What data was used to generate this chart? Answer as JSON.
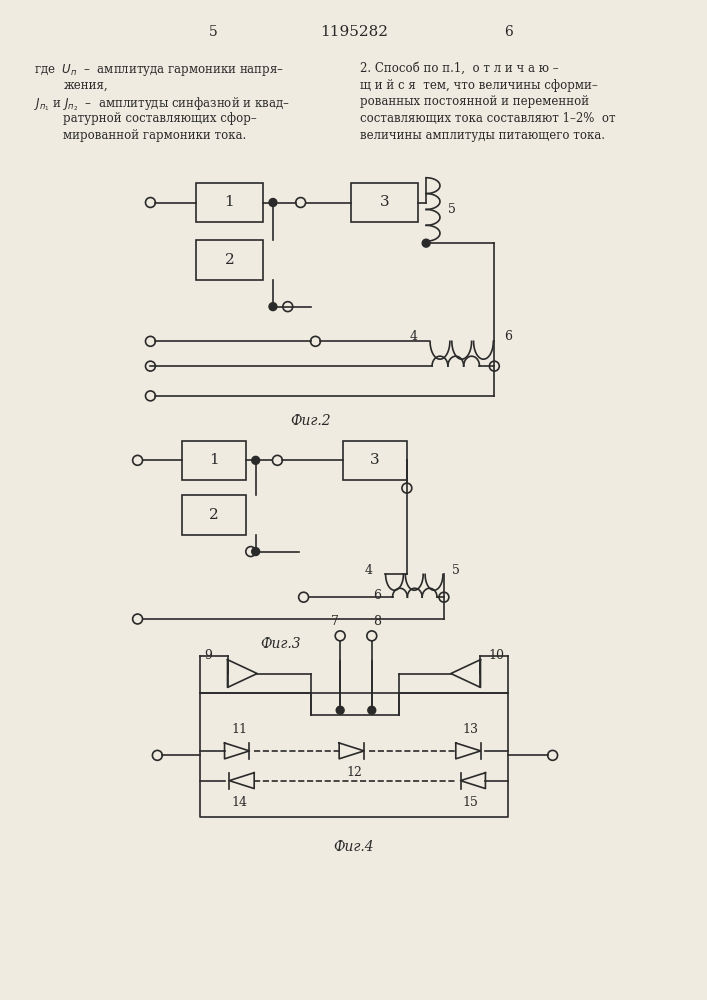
{
  "page_width": 7.07,
  "page_height": 10.0,
  "bg_color": "#f0ebe0",
  "line_color": "#2a2a2a",
  "header_text": "1195282",
  "page_num_left": "5",
  "page_num_right": "6"
}
